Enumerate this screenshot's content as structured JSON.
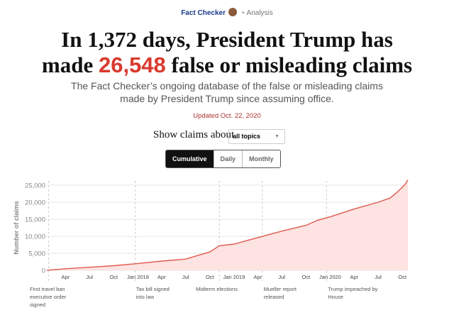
{
  "header": {
    "brand": "Fact Checker",
    "section": "Analysis"
  },
  "headline": {
    "part1": "In 1,372 days, President Trump has",
    "part2a": "made ",
    "number": "26,548",
    "part2b": " false or misleading claims"
  },
  "subtitle": "The Fact Checker’s ongoing database of the false or misleading claims made by President Trump since assuming office.",
  "updated": "Updated Oct. 22, 2020",
  "filter": {
    "label": "Show claims about",
    "value": "all topics"
  },
  "tabs": [
    {
      "label": "Cumulative",
      "active": true
    },
    {
      "label": "Daily",
      "active": false
    },
    {
      "label": "Monthly",
      "active": false
    }
  ],
  "colors": {
    "accent": "#d93a2e",
    "line": "#e05a50",
    "fill": "#fde3e1"
  },
  "chart_data": {
    "type": "area",
    "ylabel": "Number of claims",
    "ylim": [
      0,
      26548
    ],
    "grid": true,
    "yticks": [
      0,
      5000,
      10000,
      15000,
      20000,
      25000
    ],
    "ytick_labels": [
      "0",
      "5,000",
      "10,000",
      "15,000",
      "20,000",
      "25,000"
    ],
    "xticks": [
      {
        "date": "2017-04-01",
        "label": "Apr"
      },
      {
        "date": "2017-07-01",
        "label": "Jul"
      },
      {
        "date": "2017-10-01",
        "label": "Oct"
      },
      {
        "date": "2018-01-01",
        "label": "Jan 2018"
      },
      {
        "date": "2018-04-01",
        "label": "Apr"
      },
      {
        "date": "2018-07-01",
        "label": "Jul"
      },
      {
        "date": "2018-10-01",
        "label": "Oct"
      },
      {
        "date": "2019-01-01",
        "label": "Jan 2019"
      },
      {
        "date": "2019-04-01",
        "label": "Apr"
      },
      {
        "date": "2019-07-01",
        "label": "Jul"
      },
      {
        "date": "2019-10-01",
        "label": "Oct"
      },
      {
        "date": "2020-01-01",
        "label": "Jan 2020"
      },
      {
        "date": "2020-04-01",
        "label": "Apr"
      },
      {
        "date": "2020-07-01",
        "label": "Jul"
      },
      {
        "date": "2020-10-01",
        "label": "Oct"
      }
    ],
    "xrange": [
      "2017-01-20",
      "2020-10-22"
    ],
    "series": [
      {
        "x": [
          "2017-01-20",
          "2017-04-01",
          "2017-07-01",
          "2017-10-01",
          "2018-01-01",
          "2018-04-01",
          "2018-07-01",
          "2018-10-01",
          "2018-11-06",
          "2019-01-01",
          "2019-04-01",
          "2019-07-01",
          "2019-10-01",
          "2019-11-15",
          "2020-01-01",
          "2020-04-01",
          "2020-07-01",
          "2020-08-15",
          "2020-09-15",
          "2020-10-10",
          "2020-10-22"
        ],
        "y": [
          0,
          450,
          900,
          1350,
          2000,
          2700,
          3300,
          5400,
          7200,
          7700,
          9600,
          11500,
          13200,
          14700,
          15700,
          18000,
          20000,
          21200,
          23200,
          25100,
          26548
        ]
      }
    ],
    "annotations": [
      {
        "date": "2017-01-27",
        "label": "First travel ban executive order signed"
      },
      {
        "date": "2017-12-22",
        "label": "Tax bill signed into law"
      },
      {
        "date": "2018-11-06",
        "label": "Midterm elections"
      },
      {
        "date": "2019-04-18",
        "label": "Mueller report released"
      },
      {
        "date": "2019-12-18",
        "label": "Trump impeached by House"
      }
    ]
  }
}
